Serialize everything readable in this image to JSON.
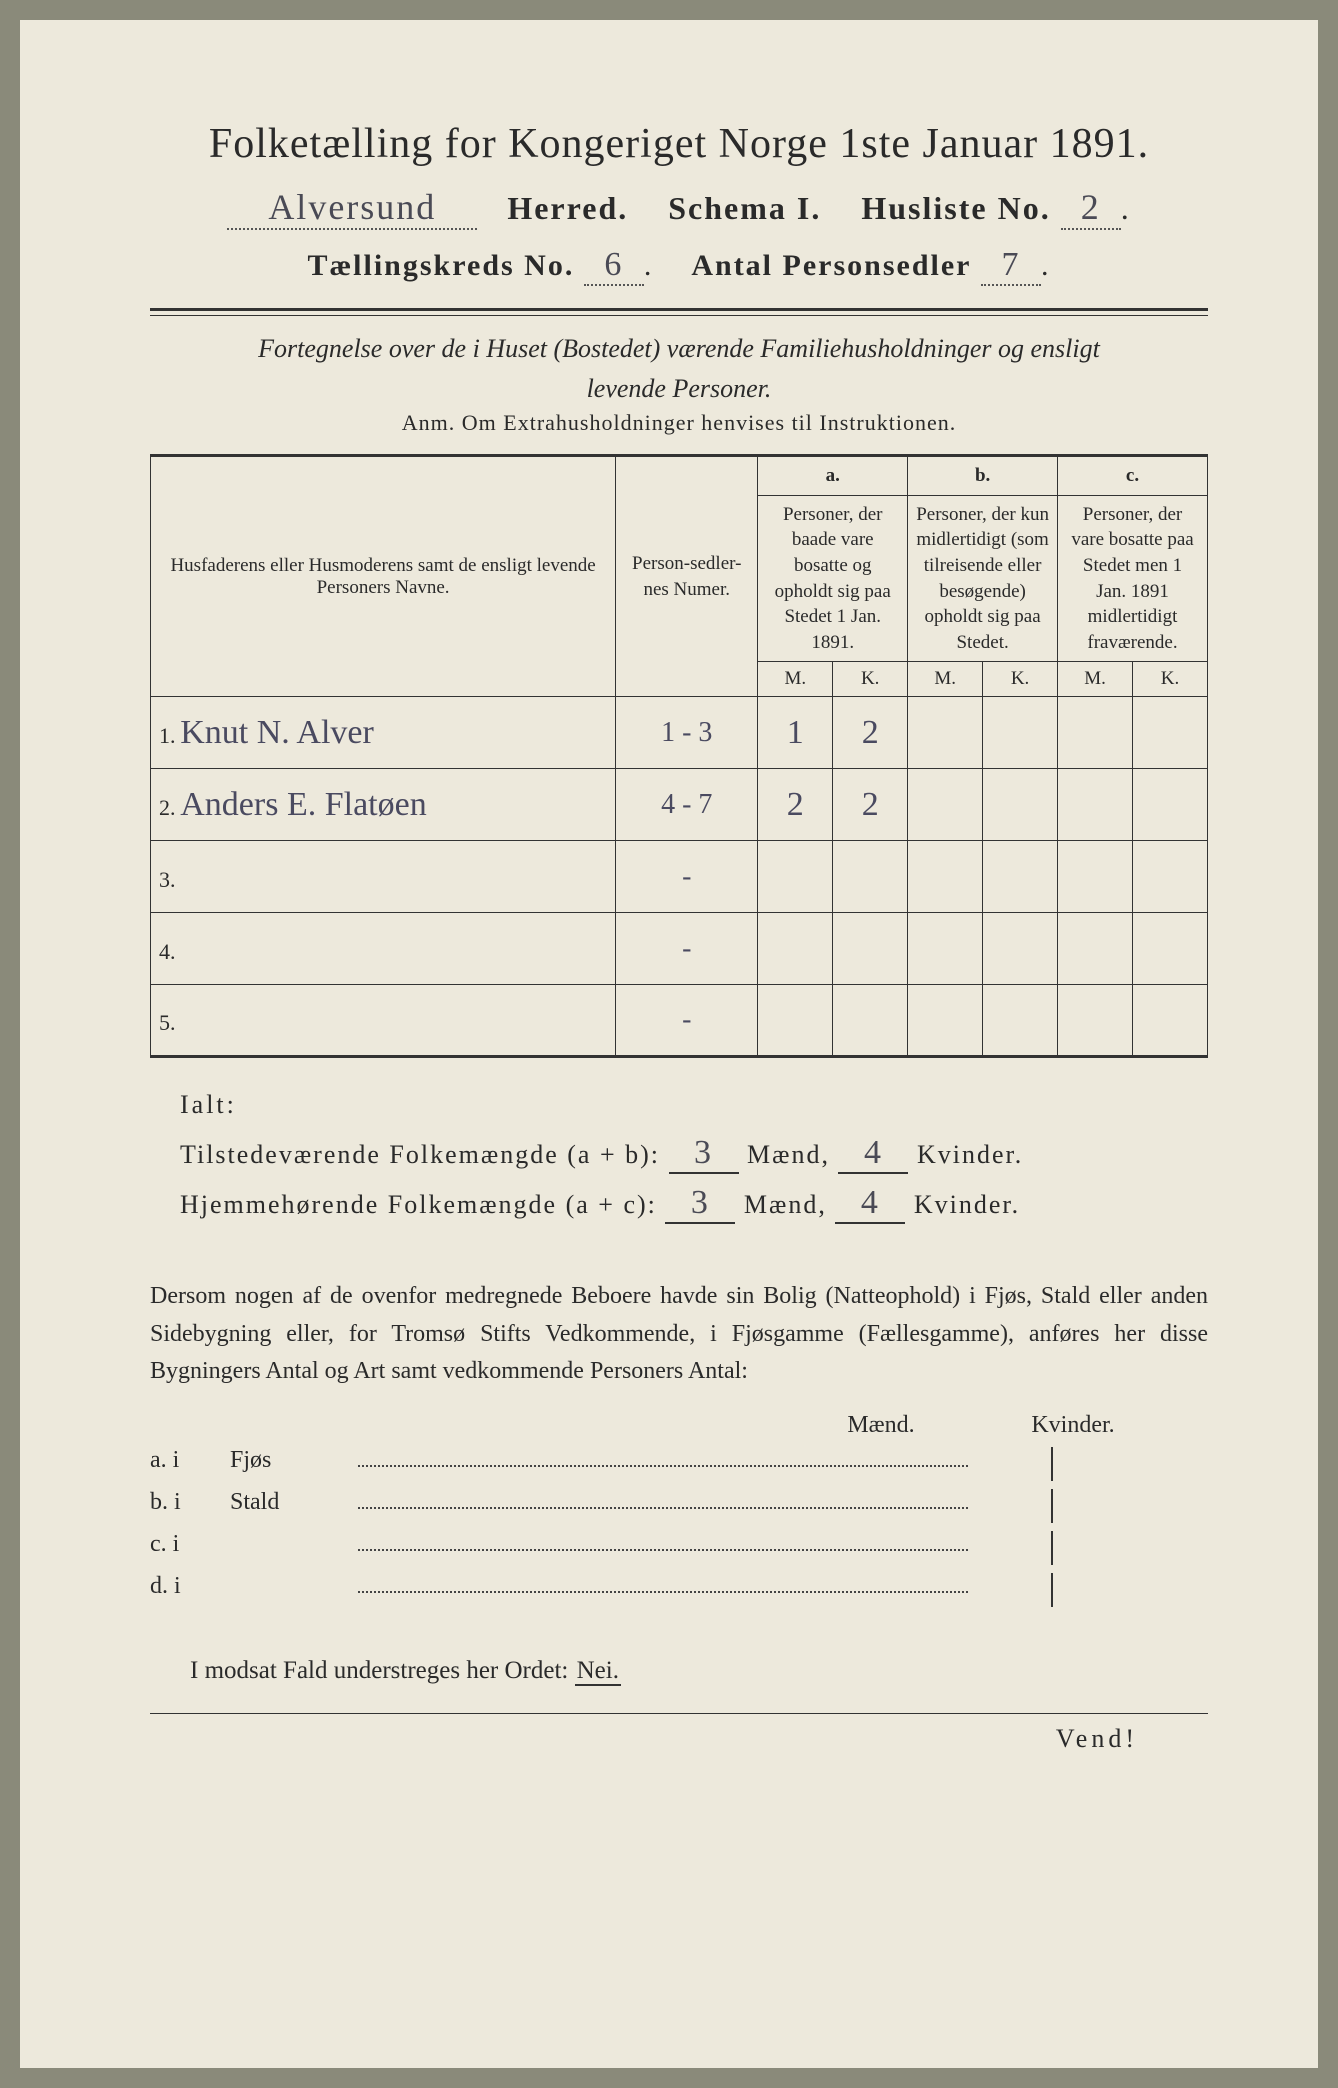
{
  "header": {
    "title": "Folketælling for Kongeriget Norge 1ste Januar 1891.",
    "herred_value": "Alversund",
    "herred_label": "Herred.",
    "schema_label": "Schema I.",
    "husliste_label": "Husliste No.",
    "husliste_no": "2",
    "kreds_label": "Tællingskreds No.",
    "kreds_no": "6",
    "antal_label": "Antal Personsedler",
    "antal_no": "7"
  },
  "subtitle": {
    "line1": "Fortegnelse over de i Huset (Bostedet) værende Familiehusholdninger og ensligt",
    "line2": "levende Personer.",
    "anm": "Anm.  Om Extrahusholdninger henvises til Instruktionen."
  },
  "table": {
    "col1": "Husfaderens eller Husmoderens samt de ensligt levende Personers Navne.",
    "col2": "Person-sedler-nes Numer.",
    "col_a_top": "a.",
    "col_a": "Personer, der baade vare bosatte og opholdt sig paa Stedet 1 Jan. 1891.",
    "col_b_top": "b.",
    "col_b": "Personer, der kun midlertidigt (som tilreisende eller besøgende) opholdt sig paa Stedet.",
    "col_c_top": "c.",
    "col_c": "Personer, der vare bosatte paa Stedet men 1 Jan. 1891 midlertidigt fraværende.",
    "m": "M.",
    "k": "K.",
    "rows": [
      {
        "n": "1.",
        "name": "Knut N. Alver",
        "num": "1 - 3",
        "am": "1",
        "ak": "2",
        "bm": "",
        "bk": "",
        "cm": "",
        "ck": ""
      },
      {
        "n": "2.",
        "name": "Anders E. Flatøen",
        "num": "4 - 7",
        "am": "2",
        "ak": "2",
        "bm": "",
        "bk": "",
        "cm": "",
        "ck": ""
      },
      {
        "n": "3.",
        "name": "",
        "num": "-",
        "am": "",
        "ak": "",
        "bm": "",
        "bk": "",
        "cm": "",
        "ck": ""
      },
      {
        "n": "4.",
        "name": "",
        "num": "-",
        "am": "",
        "ak": "",
        "bm": "",
        "bk": "",
        "cm": "",
        "ck": ""
      },
      {
        "n": "5.",
        "name": "",
        "num": "-",
        "am": "",
        "ak": "",
        "bm": "",
        "bk": "",
        "cm": "",
        "ck": ""
      }
    ]
  },
  "totals": {
    "ialt": "Ialt:",
    "line1_label": "Tilstedeværende Folkemængde (a + b):",
    "line2_label": "Hjemmehørende Folkemængde (a + c):",
    "maend": "Mænd,",
    "kvinder": "Kvinder.",
    "l1_m": "3",
    "l1_k": "4",
    "l2_m": "3",
    "l2_k": "4"
  },
  "para": "Dersom nogen af de ovenfor medregnede Beboere havde sin Bolig (Natteophold) i Fjøs, Stald eller anden Sidebygning eller, for Tromsø Stifts Vedkommende, i Fjøsgamme (Fællesgamme), anføres her disse Bygningers Antal og Art samt vedkommende Personers Antal:",
  "mk_header": {
    "m": "Mænd.",
    "k": "Kvinder."
  },
  "building_rows": [
    {
      "label": "a.  i",
      "name": "Fjøs"
    },
    {
      "label": "b.  i",
      "name": "Stald"
    },
    {
      "label": "c.  i",
      "name": ""
    },
    {
      "label": "d.  i",
      "name": ""
    }
  ],
  "nei_line": {
    "text": "I modsat Fald understreges her Ordet:",
    "word": "Nei."
  },
  "footer": "Vend!",
  "colors": {
    "paper": "#ede9dc",
    "ink": "#2a2a2a",
    "handwriting": "#4a4a60"
  }
}
